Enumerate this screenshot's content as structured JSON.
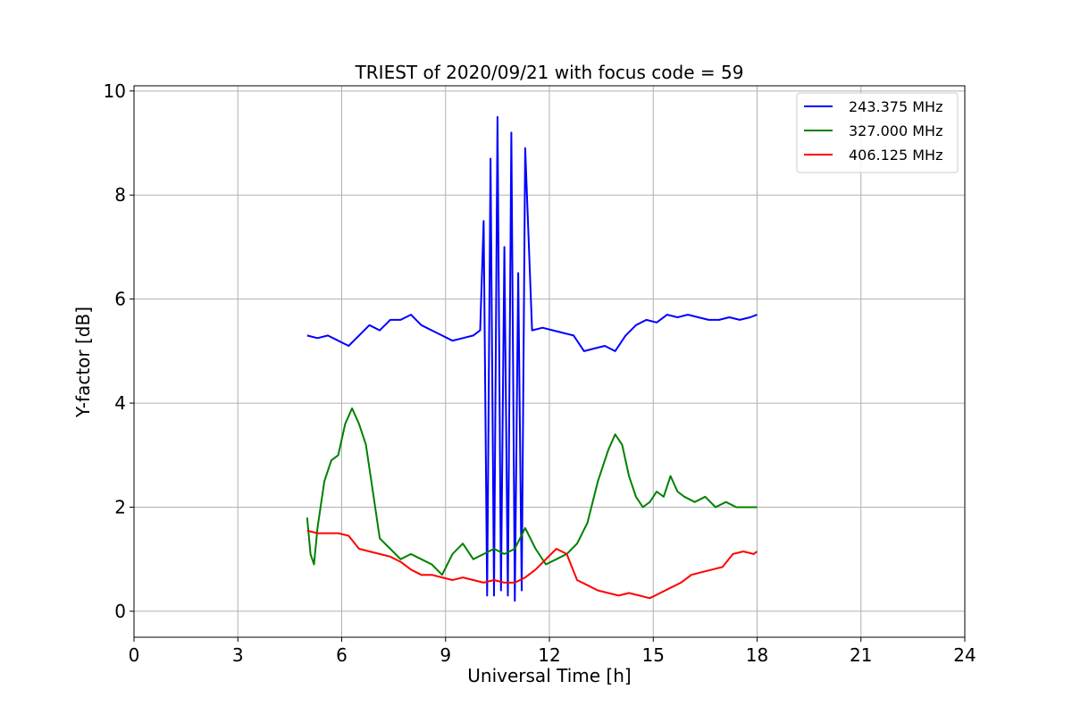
{
  "chart_data": {
    "type": "line",
    "title": "TRIEST of 2020/09/21 with focus code = 59",
    "xlabel": "Universal Time [h]",
    "ylabel": "Y-factor [dB]",
    "xlim": [
      0,
      24
    ],
    "ylim": [
      -0.5,
      10.1
    ],
    "x_ticks": [
      0,
      3,
      6,
      9,
      12,
      15,
      18,
      21,
      24
    ],
    "y_ticks": [
      0,
      2,
      4,
      6,
      8,
      10
    ],
    "grid": true,
    "legend_position": "top-right",
    "series": [
      {
        "name": "243.375 MHz",
        "color": "#0000ff",
        "x": [
          5.0,
          5.3,
          5.6,
          5.9,
          6.2,
          6.5,
          6.8,
          7.1,
          7.4,
          7.7,
          8.0,
          8.3,
          8.6,
          8.9,
          9.2,
          9.5,
          9.8,
          10.0,
          10.1,
          10.2,
          10.3,
          10.4,
          10.5,
          10.6,
          10.7,
          10.8,
          10.9,
          11.0,
          11.1,
          11.2,
          11.3,
          11.5,
          11.8,
          12.1,
          12.4,
          12.7,
          13.0,
          13.3,
          13.6,
          13.9,
          14.2,
          14.5,
          14.8,
          15.1,
          15.4,
          15.7,
          16.0,
          16.3,
          16.6,
          16.9,
          17.2,
          17.5,
          17.8,
          18.0
        ],
        "y": [
          5.3,
          5.25,
          5.3,
          5.2,
          5.1,
          5.3,
          5.5,
          5.4,
          5.6,
          5.6,
          5.7,
          5.5,
          5.4,
          5.3,
          5.2,
          5.25,
          5.3,
          5.4,
          7.5,
          0.3,
          8.7,
          0.3,
          9.5,
          0.4,
          7.0,
          0.3,
          9.2,
          0.2,
          6.5,
          0.4,
          8.9,
          5.4,
          5.45,
          5.4,
          5.35,
          5.3,
          5.0,
          5.05,
          5.1,
          5.0,
          5.3,
          5.5,
          5.6,
          5.55,
          5.7,
          5.65,
          5.7,
          5.65,
          5.6,
          5.6,
          5.65,
          5.6,
          5.65,
          5.7
        ]
      },
      {
        "name": "327.000 MHz",
        "color": "#008000",
        "x": [
          5.0,
          5.1,
          5.2,
          5.3,
          5.5,
          5.7,
          5.9,
          6.1,
          6.3,
          6.5,
          6.7,
          6.9,
          7.1,
          7.4,
          7.7,
          8.0,
          8.3,
          8.6,
          8.9,
          9.2,
          9.5,
          9.8,
          10.1,
          10.4,
          10.7,
          11.0,
          11.3,
          11.6,
          11.9,
          12.2,
          12.5,
          12.8,
          13.1,
          13.4,
          13.7,
          13.9,
          14.1,
          14.3,
          14.5,
          14.7,
          14.9,
          15.1,
          15.3,
          15.5,
          15.7,
          15.9,
          16.2,
          16.5,
          16.8,
          17.1,
          17.4,
          17.7,
          18.0
        ],
        "y": [
          1.8,
          1.1,
          0.9,
          1.6,
          2.5,
          2.9,
          3.0,
          3.6,
          3.9,
          3.6,
          3.2,
          2.3,
          1.4,
          1.2,
          1.0,
          1.1,
          1.0,
          0.9,
          0.7,
          1.1,
          1.3,
          1.0,
          1.1,
          1.2,
          1.1,
          1.2,
          1.6,
          1.2,
          0.9,
          1.0,
          1.1,
          1.3,
          1.7,
          2.5,
          3.1,
          3.4,
          3.2,
          2.6,
          2.2,
          2.0,
          2.1,
          2.3,
          2.2,
          2.6,
          2.3,
          2.2,
          2.1,
          2.2,
          2.0,
          2.1,
          2.0,
          2.0,
          2.0
        ]
      },
      {
        "name": "406.125 MHz",
        "color": "#ff0000",
        "x": [
          5.0,
          5.3,
          5.6,
          5.9,
          6.2,
          6.5,
          6.8,
          7.1,
          7.4,
          7.7,
          8.0,
          8.3,
          8.6,
          8.9,
          9.2,
          9.5,
          9.8,
          10.1,
          10.4,
          10.7,
          11.0,
          11.3,
          11.6,
          11.9,
          12.2,
          12.5,
          12.8,
          13.1,
          13.4,
          13.7,
          14.0,
          14.3,
          14.6,
          14.9,
          15.2,
          15.5,
          15.8,
          16.1,
          16.4,
          16.7,
          17.0,
          17.3,
          17.6,
          17.9,
          18.0
        ],
        "y": [
          1.55,
          1.5,
          1.5,
          1.5,
          1.45,
          1.2,
          1.15,
          1.1,
          1.05,
          0.95,
          0.8,
          0.7,
          0.7,
          0.65,
          0.6,
          0.65,
          0.6,
          0.55,
          0.6,
          0.55,
          0.55,
          0.65,
          0.8,
          1.0,
          1.2,
          1.1,
          0.6,
          0.5,
          0.4,
          0.35,
          0.3,
          0.35,
          0.3,
          0.25,
          0.35,
          0.45,
          0.55,
          0.7,
          0.75,
          0.8,
          0.85,
          1.1,
          1.15,
          1.1,
          1.15
        ]
      }
    ]
  }
}
